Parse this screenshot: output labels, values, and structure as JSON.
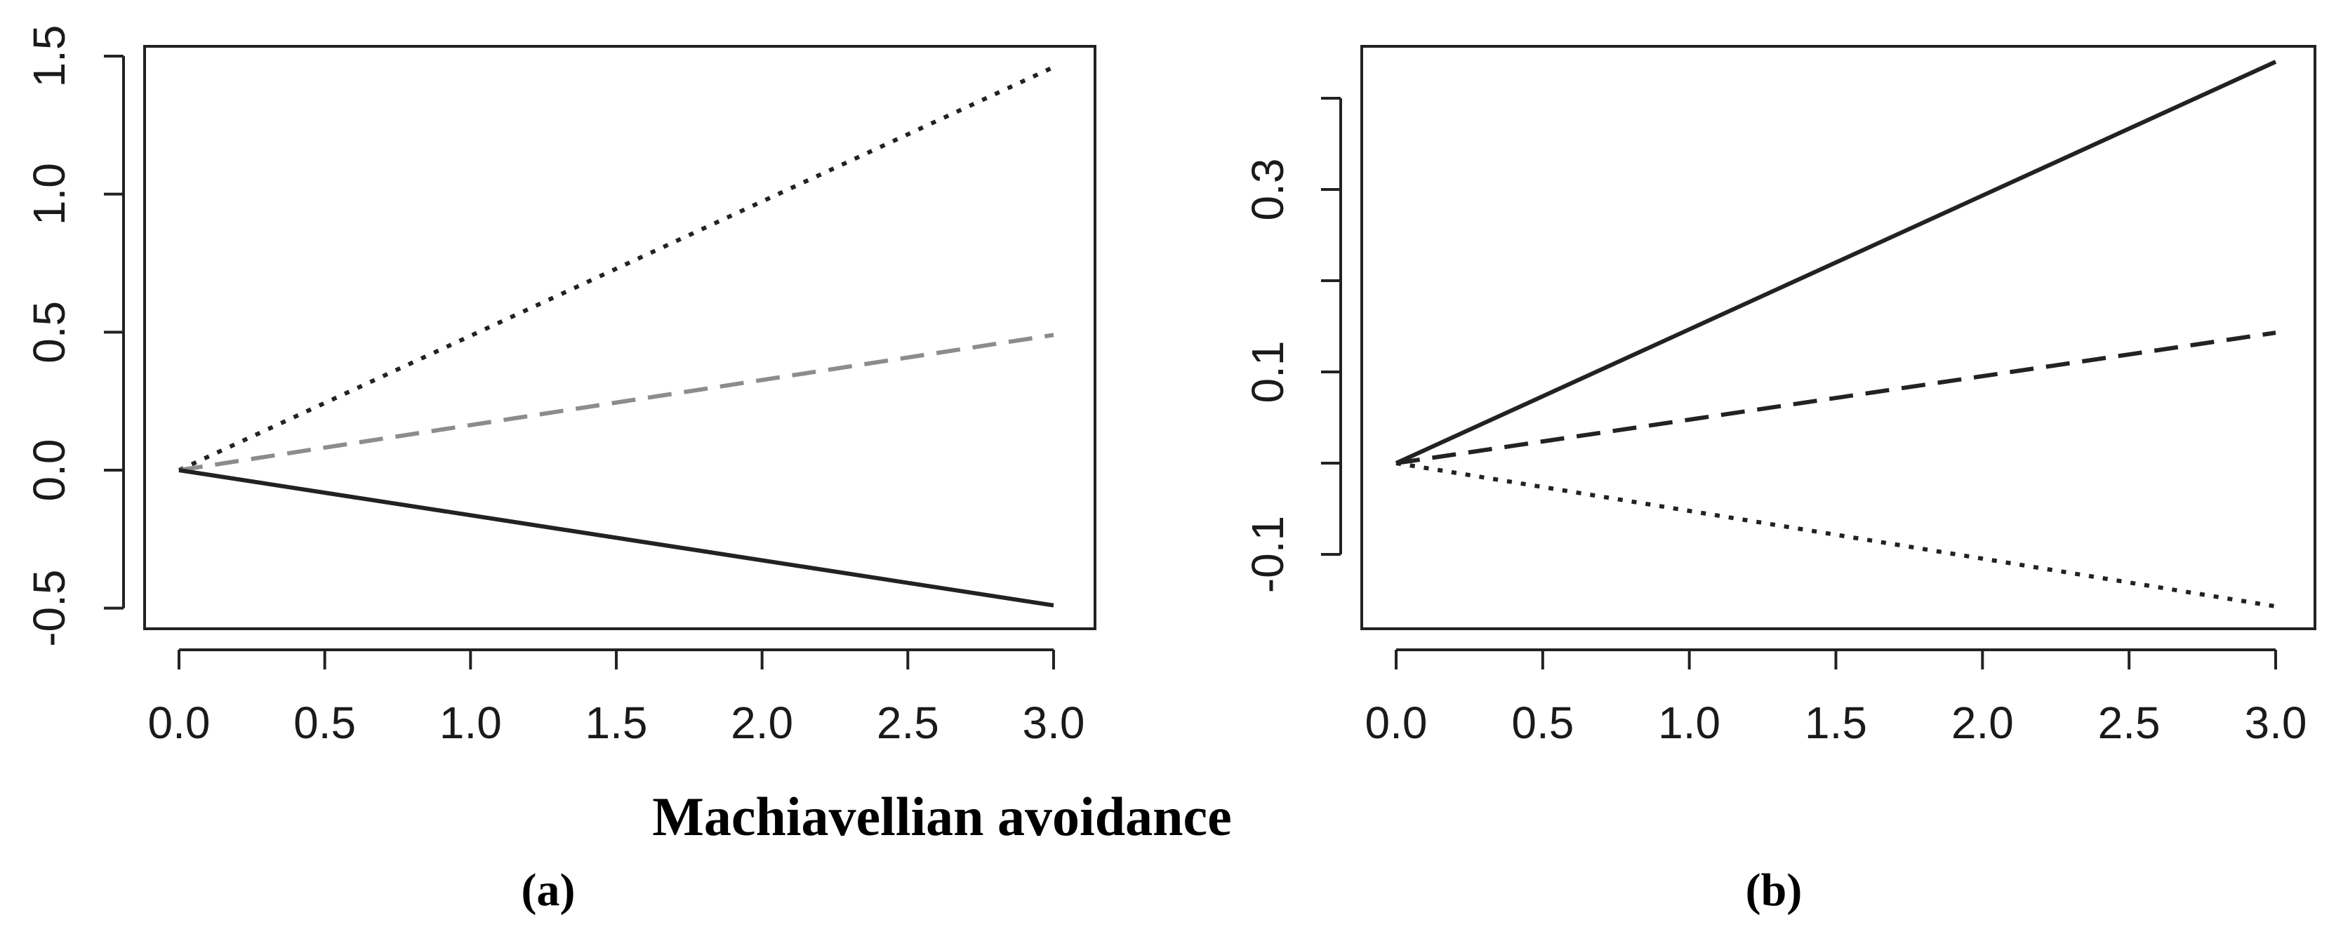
{
  "figure": {
    "xlabel": "Machiavellian avoidance",
    "panel_labels": [
      "(a)",
      "(b)"
    ]
  },
  "chart_data": [
    {
      "type": "line",
      "panel": "(a)",
      "title": "",
      "xlabel": "",
      "ylabel": "",
      "xlim": [
        0,
        3
      ],
      "ylim": [
        -0.5,
        1.5
      ],
      "x_ticks": [
        0.0,
        0.5,
        1.0,
        1.5,
        2.0,
        2.5,
        3.0
      ],
      "x_tick_labels": [
        "0.0",
        "0.5",
        "1.0",
        "1.5",
        "2.0",
        "2.5",
        "3.0"
      ],
      "y_ticks": [
        -0.5,
        0.0,
        0.5,
        1.0,
        1.5
      ],
      "y_tick_labels": [
        "-0.5",
        "0.0",
        "0.5",
        "1.0",
        "1.5"
      ],
      "grid": false,
      "legend": "none",
      "series": [
        {
          "style": "dotted",
          "color": "#222222",
          "x": [
            0,
            3
          ],
          "y": [
            0,
            1.46
          ]
        },
        {
          "style": "dashed",
          "color": "#8c8c8c",
          "x": [
            0,
            3
          ],
          "y": [
            0,
            0.49
          ]
        },
        {
          "style": "solid",
          "color": "#222222",
          "x": [
            0,
            3
          ],
          "y": [
            0,
            -0.49
          ]
        }
      ]
    },
    {
      "type": "line",
      "panel": "(b)",
      "title": "",
      "xlabel": "",
      "ylabel": "",
      "xlim": [
        0,
        3
      ],
      "ylim": [
        -0.15,
        0.45
      ],
      "x_ticks": [
        0.0,
        0.5,
        1.0,
        1.5,
        2.0,
        2.5,
        3.0
      ],
      "x_tick_labels": [
        "0.0",
        "0.5",
        "1.0",
        "1.5",
        "2.0",
        "2.5",
        "3.0"
      ],
      "y_ticks": [
        -0.1,
        0.0,
        0.1,
        0.2,
        0.3,
        0.4
      ],
      "y_tick_labels": [
        "-0.1",
        "",
        "0.1",
        "",
        "0.3",
        ""
      ],
      "grid": false,
      "legend": "none",
      "series": [
        {
          "style": "solid",
          "color": "#222222",
          "x": [
            0,
            3
          ],
          "y": [
            0,
            0.44
          ]
        },
        {
          "style": "dashed",
          "color": "#222222",
          "x": [
            0,
            3
          ],
          "y": [
            0,
            0.143
          ]
        },
        {
          "style": "dotted",
          "color": "#222222",
          "x": [
            0,
            3
          ],
          "y": [
            0,
            -0.157
          ]
        }
      ]
    }
  ]
}
